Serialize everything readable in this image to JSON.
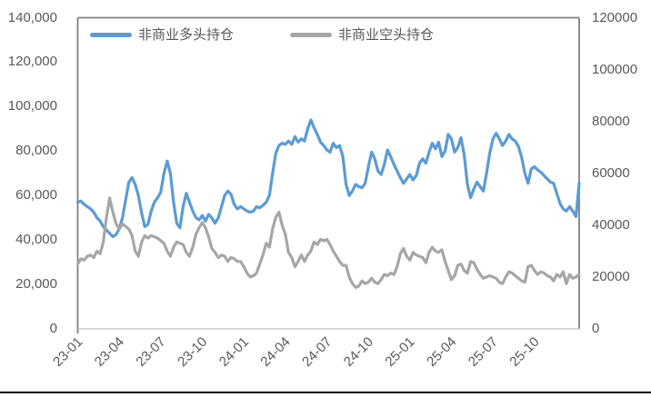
{
  "colors": {
    "long_series": "#5B9BD5",
    "short_series": "#A6A6A6",
    "axis_text": "#595959",
    "plot_border": "#7F7F7F",
    "baseline": "#C9C9C9",
    "page_divider": "#000000"
  },
  "chart_data": {
    "type": "line",
    "title": "",
    "legend_position": "top",
    "grid": false,
    "x_labels": [
      "23-01",
      "23-04",
      "23-07",
      "23-10",
      "24-01",
      "24-04",
      "24-07",
      "24-10",
      "25-01",
      "25-04",
      "25-07",
      "25-10"
    ],
    "x_label_step_points": 13,
    "left_axis": {
      "min": 0,
      "max": 140000,
      "tick_labels": [
        "140,000",
        "120,000",
        "100,000",
        "80,000",
        "60,000",
        "40,000",
        "20,000",
        "0"
      ]
    },
    "right_axis": {
      "min": 0,
      "max": 120000,
      "tick_labels": [
        "120000",
        "100000",
        "80000",
        "60000",
        "40000",
        "20000",
        "0"
      ]
    },
    "series": [
      {
        "name": "非商业多头持仓",
        "color": "#5B9BD5",
        "axis": "left",
        "values": [
          57000,
          57500,
          56000,
          55000,
          54000,
          52500,
          50000,
          48500,
          46000,
          44500,
          43000,
          41500,
          42500,
          45000,
          50000,
          58000,
          66000,
          68000,
          65000,
          60000,
          52000,
          46000,
          47000,
          53000,
          57000,
          59000,
          61500,
          70000,
          75500,
          70000,
          57000,
          47500,
          45500,
          55000,
          61000,
          57000,
          53000,
          50000,
          49000,
          51000,
          48500,
          51500,
          50000,
          47500,
          50000,
          55000,
          60000,
          62000,
          60500,
          56000,
          54000,
          55000,
          54000,
          53000,
          52500,
          53000,
          55000,
          54500,
          55500,
          57000,
          60000,
          70000,
          79000,
          82500,
          83500,
          83000,
          84500,
          83000,
          86500,
          84000,
          85500,
          84500,
          90000,
          94000,
          90500,
          87500,
          84000,
          82500,
          80500,
          79500,
          83500,
          81500,
          82500,
          77500,
          65000,
          60000,
          62000,
          65000,
          64000,
          63500,
          65500,
          73000,
          79500,
          76500,
          71000,
          69500,
          74000,
          80500,
          77500,
          74000,
          71000,
          68000,
          65500,
          67500,
          69500,
          67000,
          69000,
          74500,
          76500,
          74500,
          79500,
          83500,
          81000,
          84000,
          77500,
          80000,
          87500,
          85500,
          79500,
          81500,
          86000,
          78500,
          65000,
          59000,
          63000,
          66000,
          64000,
          62000,
          70000,
          79000,
          85500,
          88000,
          85500,
          82500,
          84500,
          87500,
          85500,
          84500,
          82000,
          77000,
          70000,
          65500,
          72000,
          73000,
          71500,
          70500,
          69000,
          67500,
          66000,
          65500,
          61000,
          56500,
          54000,
          53000,
          55000,
          53000,
          50500,
          65500
        ]
      },
      {
        "name": "非商业空头持仓",
        "color": "#A6A6A6",
        "axis": "right",
        "values": [
          25000,
          27000,
          26500,
          28000,
          28500,
          27500,
          30000,
          29000,
          33500,
          43000,
          50500,
          45000,
          40500,
          38500,
          40500,
          39500,
          38500,
          36000,
          30000,
          28000,
          33500,
          36000,
          35000,
          36000,
          35500,
          35000,
          34000,
          33000,
          30000,
          28000,
          31500,
          33500,
          33000,
          32500,
          29500,
          28000,
          31500,
          36500,
          39000,
          41000,
          39000,
          35500,
          31000,
          29500,
          27500,
          28500,
          28000,
          26000,
          27500,
          27000,
          26000,
          26000,
          24000,
          21500,
          20000,
          20500,
          21500,
          25000,
          28500,
          33000,
          31500,
          38500,
          43000,
          45000,
          40000,
          36500,
          29500,
          27500,
          24000,
          26000,
          28500,
          26000,
          28500,
          30000,
          33500,
          32500,
          34500,
          34000,
          34500,
          32500,
          30000,
          28000,
          26000,
          24500,
          24500,
          20000,
          17500,
          16000,
          16500,
          18500,
          17500,
          18000,
          19500,
          18000,
          17500,
          19000,
          21000,
          20500,
          21500,
          21000,
          24000,
          29000,
          31000,
          28000,
          26500,
          29500,
          28500,
          28000,
          27500,
          25500,
          29500,
          31500,
          30000,
          29500,
          30500,
          26000,
          22500,
          19000,
          20500,
          24500,
          25000,
          22500,
          21500,
          26000,
          25500,
          23000,
          21000,
          19500,
          20000,
          20500,
          20000,
          19500,
          18000,
          17500,
          20000,
          22000,
          21500,
          20500,
          19500,
          18500,
          18000,
          24000,
          24500,
          22500,
          21000,
          22000,
          21500,
          20500,
          20000,
          18500,
          21000,
          20000,
          22000,
          17500,
          21000,
          19500,
          20000,
          21000
        ]
      }
    ]
  }
}
